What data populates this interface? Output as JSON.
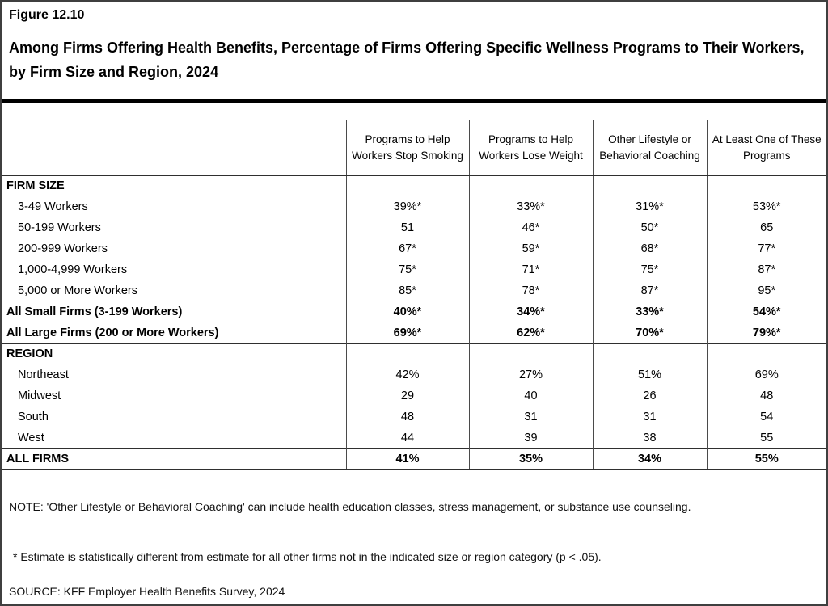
{
  "figure": {
    "label": "Figure 12.10",
    "title": "Among Firms Offering Health Benefits, Percentage of Firms Offering Specific Wellness Programs to Their Workers, by Firm Size and Region, 2024"
  },
  "chart_data": {
    "type": "table",
    "columns": [
      "Programs to Help Workers Stop Smoking",
      "Programs to Help Workers Lose Weight",
      "Other Lifestyle or Behavioral Coaching",
      "At Least One of These Programs"
    ],
    "sections": [
      {
        "header": "FIRM SIZE",
        "rows": [
          {
            "label": "3-49 Workers",
            "values": [
              "39%*",
              "33%*",
              "31%*",
              "53%*"
            ]
          },
          {
            "label": "50-199 Workers",
            "values": [
              "51",
              "46*",
              "50*",
              "65"
            ]
          },
          {
            "label": "200-999 Workers",
            "values": [
              "67*",
              "59*",
              "68*",
              "77*"
            ]
          },
          {
            "label": "1,000-4,999 Workers",
            "values": [
              "75*",
              "71*",
              "75*",
              "87*"
            ]
          },
          {
            "label": "5,000 or More Workers",
            "values": [
              "85*",
              "78*",
              "87*",
              "95*"
            ]
          },
          {
            "label": "All Small Firms (3-199 Workers)",
            "values": [
              "40%*",
              "34%*",
              "33%*",
              "54%*"
            ]
          },
          {
            "label": "All Large Firms (200 or More Workers)",
            "values": [
              "69%*",
              "62%*",
              "70%*",
              "79%*"
            ]
          }
        ]
      },
      {
        "header": "REGION",
        "rows": [
          {
            "label": "Northeast",
            "values": [
              "42%",
              "27%",
              "51%",
              "69%"
            ]
          },
          {
            "label": "Midwest",
            "values": [
              "29",
              "40",
              "26",
              "48"
            ]
          },
          {
            "label": "South",
            "values": [
              "48",
              "31",
              "31",
              "54"
            ]
          },
          {
            "label": "West",
            "values": [
              "44",
              "39",
              "38",
              "55"
            ]
          }
        ]
      }
    ],
    "total_row": {
      "label": "ALL FIRMS",
      "values": [
        "41%",
        "35%",
        "34%",
        "55%"
      ]
    }
  },
  "notes": {
    "note": "NOTE: 'Other Lifestyle or Behavioral Coaching' can include health education classes, stress management, or substance use counseling.",
    "asterisk": "* Estimate is statistically different from estimate for all other firms not in the indicated size or region category (p < .05).",
    "source": "SOURCE: KFF Employer Health Benefits Survey, 2024"
  }
}
